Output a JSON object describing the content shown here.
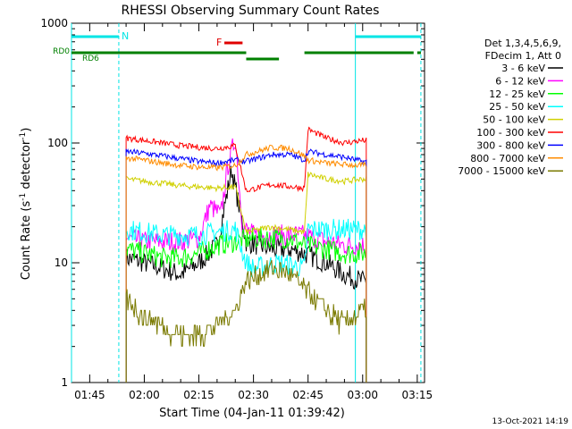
{
  "chart_data": {
    "type": "line",
    "title": "RHESSI Observing Summary Count Rates",
    "xlabel": "Start Time (04-Jan-11 01:39:42)",
    "ylabel_main": "Count Rate (s",
    "ylabel_sup1": "-1",
    "ylabel_mid": " detector",
    "ylabel_sup2": "-1",
    "ylabel_end": ")",
    "yscale": "log",
    "ylim": [
      1,
      1000
    ],
    "xlim": [
      "01:40",
      "03:17"
    ],
    "x_ticks": [
      "01:45",
      "02:00",
      "02:15",
      "02:30",
      "02:45",
      "03:00",
      "03:15"
    ],
    "y_ticks": [
      "1",
      "10",
      "100",
      "1000"
    ],
    "legend_header": [
      "Det 1,3,4,5,6,9,",
      "FDecim 1, Att 0"
    ],
    "legend_position": "right",
    "footer_date": "13-Oct-2021 14:19",
    "flags": {
      "n_label": "N",
      "f_label": "F",
      "rd0_label": "RD0",
      "rd6_label": "RD6",
      "n_intervals": [
        [
          "01:40",
          "01:53"
        ],
        [
          "02:58",
          "03:16"
        ]
      ],
      "f_intervals": [
        [
          "02:22",
          "02:27"
        ]
      ],
      "rd6_intervals": [
        [
          "01:40",
          "02:28"
        ],
        [
          "02:28",
          "02:37"
        ],
        [
          "02:44",
          "03:14"
        ],
        [
          "03:15",
          "03:16"
        ]
      ],
      "n_color": "#00e5e5",
      "f_color": "#e00000",
      "rd_color": "#008000"
    },
    "night_lines": [
      {
        "time": "01:40",
        "style": "solid"
      },
      {
        "time": "01:53",
        "style": "dashed"
      },
      {
        "time": "02:58",
        "style": "solid"
      },
      {
        "time": "03:16",
        "style": "dashed"
      }
    ],
    "night_line_color": "#00e5e5",
    "data_start": "01:55",
    "data_end": "03:01",
    "series": [
      {
        "name": "3 - 6 keV",
        "color": "#000000",
        "x": [
          "01:55",
          "02:00",
          "02:05",
          "02:10",
          "02:15",
          "02:20",
          "02:24",
          "02:28",
          "02:35",
          "02:40",
          "02:44",
          "02:50",
          "02:55",
          "03:00"
        ],
        "values": [
          11,
          10,
          9,
          8,
          10,
          14,
          60,
          15,
          13,
          13,
          12,
          10,
          8,
          7
        ]
      },
      {
        "name": "6 - 12 keV",
        "color": "#ff00ff",
        "x": [
          "01:55",
          "02:00",
          "02:05",
          "02:10",
          "02:15",
          "02:18",
          "02:21",
          "02:23",
          "02:25",
          "02:27",
          "02:30",
          "02:40",
          "02:44",
          "02:50",
          "02:55",
          "03:00"
        ],
        "values": [
          16,
          15,
          15,
          15,
          16,
          30,
          25,
          65,
          110,
          20,
          17,
          17,
          17,
          15,
          14,
          14
        ]
      },
      {
        "name": "12 - 25 keV",
        "color": "#00ff00",
        "x": [
          "01:55",
          "02:00",
          "02:05",
          "02:10",
          "02:15",
          "02:20",
          "02:25",
          "02:30",
          "02:40",
          "02:44",
          "02:50",
          "02:55",
          "03:00"
        ],
        "values": [
          13,
          12,
          11,
          11,
          12,
          14,
          15,
          16,
          16,
          14,
          13,
          12,
          12
        ]
      },
      {
        "name": "25 - 50 keV",
        "color": "#00ffff",
        "x": [
          "01:55",
          "02:00",
          "02:05",
          "02:10",
          "02:15",
          "02:20",
          "02:25",
          "02:28",
          "02:30",
          "02:37",
          "02:44",
          "02:45",
          "02:50",
          "02:55",
          "03:00"
        ],
        "values": [
          19,
          18,
          17,
          17,
          17,
          18,
          19,
          10,
          9,
          10,
          9,
          19,
          19,
          19,
          19
        ]
      },
      {
        "name": "50 - 100 keV",
        "color": "#d0d000",
        "x": [
          "01:55",
          "02:00",
          "02:05",
          "02:10",
          "02:15",
          "02:20",
          "02:25",
          "02:28",
          "02:35",
          "02:44",
          "02:45",
          "02:50",
          "02:55",
          "03:00"
        ],
        "values": [
          50,
          48,
          46,
          44,
          43,
          42,
          43,
          18,
          20,
          18,
          55,
          50,
          48,
          50
        ]
      },
      {
        "name": "100 - 300 keV",
        "color": "#ff0000",
        "x": [
          "01:55",
          "02:00",
          "02:05",
          "02:10",
          "02:15",
          "02:20",
          "02:25",
          "02:28",
          "02:35",
          "02:44",
          "02:45",
          "02:50",
          "02:55",
          "03:00"
        ],
        "values": [
          110,
          105,
          100,
          95,
          92,
          90,
          95,
          40,
          45,
          42,
          130,
          110,
          100,
          105
        ]
      },
      {
        "name": "300 - 800 keV",
        "color": "#0000ff",
        "x": [
          "01:55",
          "02:00",
          "02:05",
          "02:10",
          "02:15",
          "02:20",
          "02:25",
          "02:28",
          "02:35",
          "02:40",
          "02:44",
          "02:45",
          "02:50",
          "02:55",
          "03:00"
        ],
        "values": [
          85,
          82,
          78,
          74,
          70,
          68,
          72,
          70,
          80,
          80,
          72,
          85,
          80,
          76,
          70
        ]
      },
      {
        "name": "800 - 7000 keV",
        "color": "#ff8c00",
        "x": [
          "01:55",
          "02:00",
          "02:05",
          "02:10",
          "02:15",
          "02:20",
          "02:25",
          "02:28",
          "02:35",
          "02:40",
          "02:44",
          "02:45",
          "02:50",
          "02:55",
          "03:00"
        ],
        "values": [
          75,
          72,
          68,
          65,
          63,
          62,
          65,
          80,
          92,
          90,
          78,
          72,
          68,
          66,
          65
        ]
      },
      {
        "name": "7000 - 15000 keV",
        "color": "#7a7a00",
        "x": [
          "01:55",
          "02:00",
          "02:05",
          "02:10",
          "02:15",
          "02:20",
          "02:25",
          "02:28",
          "02:35",
          "02:40",
          "02:44",
          "02:50",
          "02:55",
          "03:00"
        ],
        "values": [
          5,
          3.5,
          3,
          2.5,
          2.5,
          3,
          4,
          7,
          9,
          8,
          6,
          4,
          3,
          4
        ]
      }
    ]
  }
}
